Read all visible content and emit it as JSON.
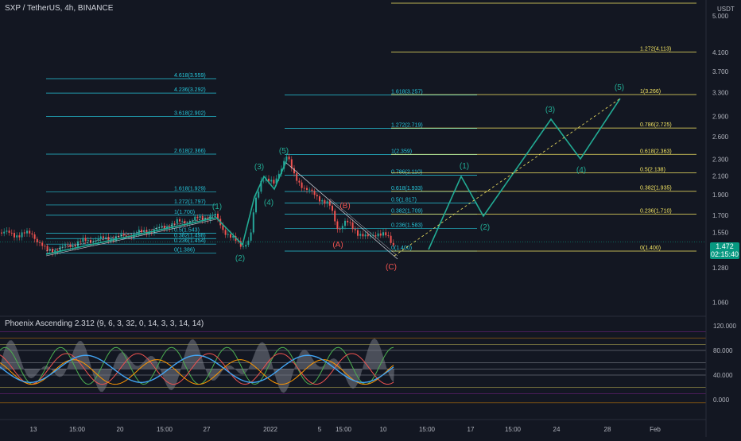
{
  "header": {
    "symbol_title": "SXP / TetherUS, 4h, BINANCE"
  },
  "indicator": {
    "title": "Phoenix Ascending 2.312 (9, 6, 3, 32, 0, 14, 3, 3, 14, 14)"
  },
  "price_axis": {
    "unit": "USDT",
    "ticks": [
      "5.000",
      "4.100",
      "3.700",
      "3.300",
      "2.900",
      "2.600",
      "2.300",
      "2.100",
      "1.900",
      "1.700",
      "1.550",
      "1.280",
      "1.060"
    ],
    "current_price": "1.472",
    "countdown": "02:15:40"
  },
  "osc_axis": {
    "ticks": [
      "120.000",
      "80.000",
      "40.000",
      "0.000"
    ]
  },
  "time_axis": {
    "ticks": [
      "13",
      "15:00",
      "20",
      "15:00",
      "27",
      "2022",
      "5",
      "15:00",
      "10",
      "15:00",
      "17",
      "15:00",
      "24",
      "28",
      "Feb"
    ]
  },
  "colors": {
    "background": "#131722",
    "fib_cyan": "#26c6da",
    "fib_yellow": "#f5e663",
    "elliott_green": "#22ab94",
    "correction_red": "#ef5350",
    "up_candle": "#26a69a",
    "down_candle": "#ef5350"
  },
  "chart_data": {
    "type": "candlestick",
    "symbol": "SXP / TetherUS",
    "timeframe": "4h",
    "exchange": "BINANCE",
    "y_scale": "log",
    "price_line": 1.472,
    "fib_left": [
      {
        "label": "4.618(3.559)",
        "price": 3.559
      },
      {
        "label": "4.236(3.292)",
        "price": 3.292
      },
      {
        "label": "3.618(2.902)",
        "price": 2.902
      },
      {
        "label": "2.618(2.366)",
        "price": 2.366
      },
      {
        "label": "1.618(1.929)",
        "price": 1.929
      },
      {
        "label": "1.272(1.797)",
        "price": 1.797
      },
      {
        "label": "1(1.700)",
        "price": 1.7
      },
      {
        "label": "0.5(1.543)",
        "price": 1.543
      },
      {
        "label": "0.382(1.498)",
        "price": 1.498
      },
      {
        "label": "0.236(1.454)",
        "price": 1.454
      },
      {
        "label": "0(1.386)",
        "price": 1.386
      }
    ],
    "fib_middle": [
      {
        "label": "1.618(3.257)",
        "price": 3.257
      },
      {
        "label": "1.272(2.719)",
        "price": 2.719
      },
      {
        "label": "1(2.359)",
        "price": 2.359
      },
      {
        "label": "0.786(2.110)",
        "price": 2.11
      },
      {
        "label": "0.618(1.933)",
        "price": 1.933
      },
      {
        "label": "0.5(1.817)",
        "price": 1.817
      },
      {
        "label": "0.382(1.709)",
        "price": 1.709
      },
      {
        "label": "0.236(1.583)",
        "price": 1.583
      },
      {
        "label": "0(1.400)",
        "price": 1.4
      }
    ],
    "fib_right": [
      {
        "label": "1.272(4.113)",
        "price": 4.113
      },
      {
        "label": "1(3.266)",
        "price": 3.266
      },
      {
        "label": "0.786(2.725)",
        "price": 2.725
      },
      {
        "label": "0.618(2.363)",
        "price": 2.363
      },
      {
        "label": "0.5(2.138)",
        "price": 2.138
      },
      {
        "label": "0.382(1.935)",
        "price": 1.935
      },
      {
        "label": "0.236(1.710)",
        "price": 1.71
      },
      {
        "label": "0(1.400)",
        "price": 1.4
      }
    ],
    "wave_labels": [
      "(1)",
      "(2)",
      "(3)",
      "(4)",
      "(5)",
      "(A)",
      "(B)",
      "(C)",
      "(1)",
      "(2)",
      "(3)",
      "(4)",
      "(5)"
    ]
  }
}
